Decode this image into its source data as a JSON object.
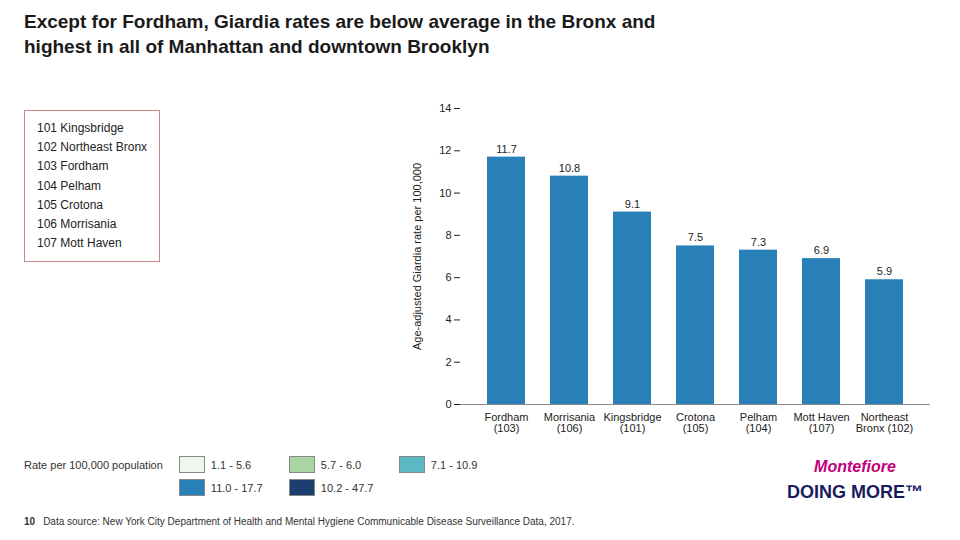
{
  "chart_data": {
    "type": "bar",
    "title": "Except for Fordham, Giardia rates are below average in the Bronx and\nhighest in all of Manhattan and downtown Brooklyn",
    "categories": [
      "Fordham\n(103)",
      "Morrisania\n(106)",
      "Kingsbridge\n(101)",
      "Crotona\n(105)",
      "Pelham\n(104)",
      "Mott Haven\n(107)",
      "Northeast\nBronx (102)"
    ],
    "values": [
      11.7,
      10.8,
      9.1,
      7.5,
      7.3,
      6.9,
      5.9
    ],
    "color": "#2980b9",
    "ylabel": "Age-adjusted Giardia rate per 100,000",
    "ylim": [
      0,
      14
    ],
    "yticks": [
      0,
      2,
      4,
      6,
      8,
      10,
      12,
      14
    ],
    "grid": false,
    "data_labels": true,
    "annotations": [
      "101 Kingsbridge",
      "102 Northeast Bronx",
      "103 Fordham",
      "104 Pelham",
      "105 Crotona",
      "106 Morrisania",
      "107 Mott Haven"
    ],
    "color_legend": {
      "title": "Rate per 100,000 population",
      "items": [
        {
          "label": "1.1 - 5.6",
          "color": "#eef7ee"
        },
        {
          "label": "5.7 - 6.0",
          "color": "#a8d5a2"
        },
        {
          "label": "7.1 - 10.9",
          "color": "#5bb8c5"
        },
        {
          "label": "11.0 - 17.7",
          "color": "#2980b9"
        },
        {
          "label": "10.2 - 47.7",
          "color": "#1a3f6f"
        }
      ]
    },
    "footer": [
      "10",
      "Data source: New York City Department of Health and Mental Hygiene Communicable Disease Surveillance Data, 2017."
    ],
    "branding": [
      "Montefiore",
      "DOING MORE™"
    ]
  }
}
